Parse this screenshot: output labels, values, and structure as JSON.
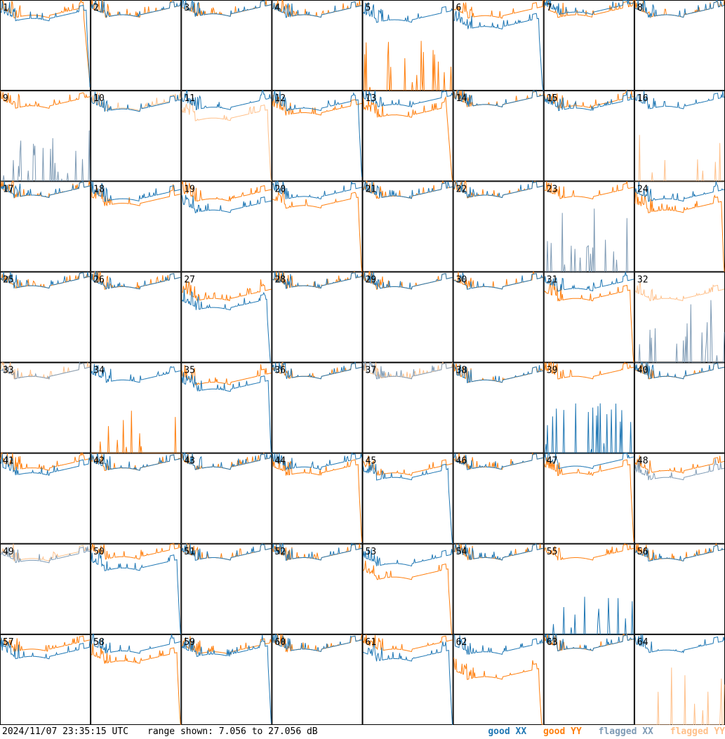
{
  "footer": {
    "timestamp": "2024/11/07 23:35:15 UTC",
    "range_text": "range shown: 7.056 to 27.056 dB"
  },
  "legend": [
    {
      "label": "good XX",
      "color": "#1f77b4"
    },
    {
      "label": "good YY",
      "color": "#ff7f0e"
    },
    {
      "label": "flagged XX",
      "color": "#7f9bb5"
    },
    {
      "label": "flagged YY",
      "color": "#ffc08a"
    }
  ],
  "chart_data": {
    "type": "line",
    "title": "",
    "xlabel": "",
    "ylabel": "",
    "ylim": [
      7.056,
      27.056
    ],
    "grid": {
      "rows": 8,
      "cols": 8
    },
    "colors": {
      "good_xx": "#1f77b4",
      "good_yy": "#ff7f0e",
      "flagged_xx": "#7f9bb5",
      "flagged_yy": "#ffc08a"
    },
    "panels": [
      {
        "id": "1",
        "xx": {
          "level": 22.8,
          "drop": 0.96
        },
        "yy": {
          "level": 23.5,
          "drop": 0.93
        }
      },
      {
        "id": "2",
        "xx": {
          "level": 23.6
        },
        "yy": {
          "level": 23.6
        }
      },
      {
        "id": "3",
        "xx": {
          "level": 23.8
        },
        "yy": {
          "level": 23.8
        }
      },
      {
        "id": "4",
        "xx": {
          "level": 23.6
        },
        "yy": {
          "level": 23.6
        }
      },
      {
        "id": "5",
        "xx": {
          "level": 22.5
        },
        "yy": {
          "flat": true
        }
      },
      {
        "id": "6",
        "xx": {
          "level": 21.0,
          "drop": 0.95
        },
        "yy": {
          "level": 23.4
        }
      },
      {
        "id": "7",
        "xx": {
          "level": 24.2
        },
        "yy": {
          "level": 23.6
        }
      },
      {
        "id": "8",
        "xx": {
          "level": 23.6
        },
        "yy": {
          "level": 23.6
        }
      },
      {
        "id": "9",
        "xx": {
          "flat": true,
          "flagged": true
        },
        "yy": {
          "level": 23.5
        }
      },
      {
        "id": "10",
        "xx": {
          "level": 22.8
        },
        "yy": {
          "level": 23.0,
          "flagged": true
        }
      },
      {
        "id": "11",
        "xx": {
          "level": 23.2
        },
        "yy": {
          "level": 20.8,
          "flagged": true,
          "drop": 0.96
        }
      },
      {
        "id": "12",
        "xx": {
          "level": 23.0,
          "drop": 0.96
        },
        "yy": {
          "level": 22.0
        }
      },
      {
        "id": "13",
        "xx": {
          "level": 23.8
        },
        "yy": {
          "level": 21.5,
          "drop": 0.94
        }
      },
      {
        "id": "14",
        "xx": {
          "level": 23.8
        },
        "yy": {
          "level": 23.8
        }
      },
      {
        "id": "15",
        "xx": {
          "level": 23.0
        },
        "yy": {
          "level": 23.5
        }
      },
      {
        "id": "16",
        "xx": {
          "level": 23.4
        },
        "yy": {
          "flat": true,
          "flagged": true
        }
      },
      {
        "id": "17",
        "xx": {
          "level": 23.8
        },
        "yy": {
          "level": 23.8
        }
      },
      {
        "id": "18",
        "xx": {
          "level": 23.0
        },
        "yy": {
          "level": 22.0
        }
      },
      {
        "id": "19",
        "xx": {
          "level": 20.5
        },
        "yy": {
          "level": 23.0
        }
      },
      {
        "id": "20",
        "xx": {
          "level": 23.5
        },
        "yy": {
          "level": 21.5,
          "drop": 0.96
        }
      },
      {
        "id": "21",
        "xx": {
          "level": 23.6
        },
        "yy": {
          "level": 23.6
        }
      },
      {
        "id": "22",
        "xx": {
          "level": 23.8
        },
        "yy": {
          "level": 23.8
        }
      },
      {
        "id": "23",
        "xx": {
          "flat": true,
          "flagged": true
        },
        "yy": {
          "level": 23.5
        }
      },
      {
        "id": "24",
        "xx": {
          "level": 23.0
        },
        "yy": {
          "level": 20.5,
          "drop": 0.97
        }
      },
      {
        "id": "25",
        "xx": {
          "level": 23.8
        },
        "yy": {
          "level": 23.8
        }
      },
      {
        "id": "26",
        "xx": {
          "level": 23.6
        },
        "yy": {
          "level": 23.6
        }
      },
      {
        "id": "27",
        "xx": {
          "level": 19.0,
          "drop": 0.95
        },
        "yy": {
          "level": 21.0
        }
      },
      {
        "id": "28",
        "xx": {
          "level": 23.8
        },
        "yy": {
          "level": 23.8
        }
      },
      {
        "id": "29",
        "xx": {
          "level": 23.6
        },
        "yy": {
          "level": 23.6
        }
      },
      {
        "id": "30",
        "xx": {
          "level": 23.6
        },
        "yy": {
          "level": 23.6
        }
      },
      {
        "id": "31",
        "xx": {
          "level": 23.2
        },
        "yy": {
          "level": 21.0,
          "drop": 0.96
        }
      },
      {
        "id": "32",
        "xx": {
          "flat": true,
          "flagged": true
        },
        "yy": {
          "level": 21.0,
          "flagged": true
        }
      },
      {
        "id": "33",
        "xx": {
          "level": 23.8,
          "flagged": true
        },
        "yy": {
          "level": 23.8,
          "flagged": true
        }
      },
      {
        "id": "34",
        "xx": {
          "level": 23.0
        },
        "yy": {
          "flat": true
        }
      },
      {
        "id": "35",
        "xx": {
          "level": 21.0,
          "drop": 0.97
        },
        "yy": {
          "level": 22.5
        }
      },
      {
        "id": "36",
        "xx": {
          "level": 23.8
        },
        "yy": {
          "level": 23.8
        }
      },
      {
        "id": "37",
        "xx": {
          "level": 23.8,
          "flagged": true
        },
        "yy": {
          "level": 23.8,
          "flagged": true
        }
      },
      {
        "id": "38",
        "xx": {
          "level": 23.0
        },
        "yy": {
          "level": 23.0
        }
      },
      {
        "id": "39",
        "xx": {
          "flat": true
        },
        "yy": {
          "level": 23.8
        }
      },
      {
        "id": "40",
        "xx": {
          "level": 23.8
        },
        "yy": {
          "level": 23.8
        }
      },
      {
        "id": "41",
        "xx": {
          "level": 22.5
        },
        "yy": {
          "level": 23.6
        }
      },
      {
        "id": "42",
        "xx": {
          "level": 23.6
        },
        "yy": {
          "level": 23.6
        }
      },
      {
        "id": "43",
        "xx": {
          "level": 23.8
        },
        "yy": {
          "level": 23.8
        }
      },
      {
        "id": "44",
        "xx": {
          "level": 23.8
        },
        "yy": {
          "level": 22.5,
          "drop": 0.96
        }
      },
      {
        "id": "45",
        "xx": {
          "level": 21.5,
          "drop": 0.95
        },
        "yy": {
          "level": 22.5
        }
      },
      {
        "id": "46",
        "xx": {
          "level": 23.8
        },
        "yy": {
          "level": 23.8
        }
      },
      {
        "id": "47",
        "xx": {
          "level": 24.0
        },
        "yy": {
          "level": 22.5,
          "drop": 0.96
        }
      },
      {
        "id": "48",
        "xx": {
          "level": 21.5,
          "flagged": true
        },
        "yy": {
          "level": 23.0
        }
      },
      {
        "id": "49",
        "xx": {
          "level": 23.2,
          "flagged": true
        },
        "yy": {
          "level": 23.6,
          "flagged": true
        }
      },
      {
        "id": "50",
        "xx": {
          "level": 21.5,
          "drop": 0.96
        },
        "yy": {
          "level": 24.0
        }
      },
      {
        "id": "51",
        "xx": {
          "level": 23.8
        },
        "yy": {
          "level": 23.8
        }
      },
      {
        "id": "52",
        "xx": {
          "level": 23.8
        },
        "yy": {
          "level": 23.8
        }
      },
      {
        "id": "53",
        "xx": {
          "level": 22.5
        },
        "yy": {
          "level": 19.5,
          "drop": 0.95
        }
      },
      {
        "id": "54",
        "xx": {
          "level": 23.8
        },
        "yy": {
          "level": 23.8
        }
      },
      {
        "id": "55",
        "xx": {
          "flat": true
        },
        "yy": {
          "level": 23.8
        }
      },
      {
        "id": "56",
        "xx": {
          "level": 23.6
        },
        "yy": {
          "level": 23.6
        }
      },
      {
        "id": "57",
        "xx": {
          "level": 22.0
        },
        "yy": {
          "level": 23.6
        }
      },
      {
        "id": "58",
        "xx": {
          "level": 23.2
        },
        "yy": {
          "level": 21.0,
          "drop": 0.96
        }
      },
      {
        "id": "59",
        "xx": {
          "level": 22.5,
          "drop": 0.96
        },
        "yy": {
          "level": 23.0
        }
      },
      {
        "id": "60",
        "xx": {
          "level": 23.6
        },
        "yy": {
          "level": 23.6
        }
      },
      {
        "id": "61",
        "xx": {
          "level": 21.5,
          "drop": 0.96
        },
        "yy": {
          "level": 23.6
        }
      },
      {
        "id": "62",
        "xx": {
          "level": 23.0
        },
        "yy": {
          "level": 17.5,
          "drop": 0.95
        }
      },
      {
        "id": "63",
        "xx": {
          "level": 23.8
        },
        "yy": {
          "level": 23.8
        }
      },
      {
        "id": "64",
        "xx": {
          "level": 23.4
        },
        "yy": {
          "flat": true,
          "flagged": true
        }
      }
    ]
  }
}
